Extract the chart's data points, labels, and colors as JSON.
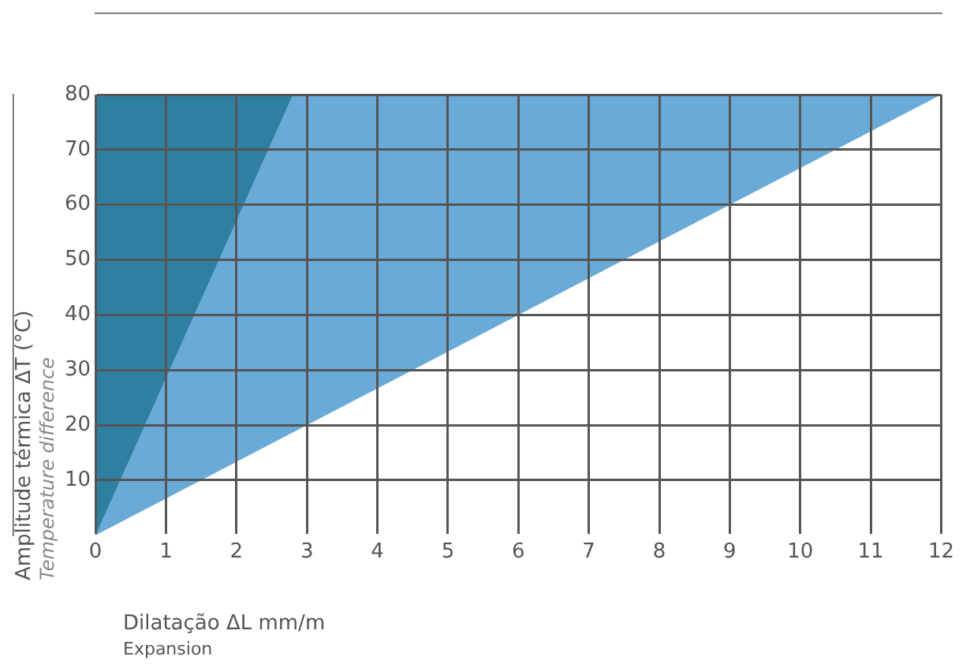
{
  "chart_data": {
    "type": "area",
    "xlabel": "Dilatação ΔL mm/m\nExpansion",
    "ylabel": "Amplitude térmica ΔT (°C)\nTemperature difference",
    "series": [
      {
        "x": [
          0,
          12
        ],
        "values": [
          0,
          80
        ],
        "color": "#6aaad8"
      },
      {
        "x": [
          0,
          2.8
        ],
        "values": [
          0,
          80
        ],
        "color": "#2f7fa0"
      }
    ],
    "xlim": [
      0,
      12
    ],
    "xticks": [
      0,
      1,
      2,
      3,
      4,
      5,
      6,
      7,
      8,
      9,
      10,
      11,
      12
    ],
    "ylim": [
      0,
      80
    ],
    "yticks": [
      10,
      20,
      30,
      40,
      50,
      60,
      70,
      80
    ],
    "grid": true,
    "legend": false
  }
}
